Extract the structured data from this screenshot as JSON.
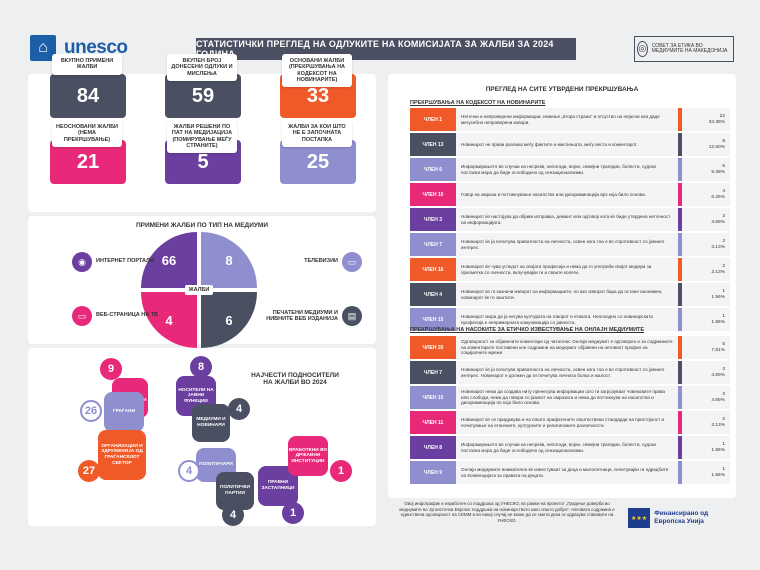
{
  "header": {
    "logo_text": "unesco",
    "title": "СТАТИСТИЧКИ ПРЕГЛЕД НА ОДЛУКИТЕ НА КОМИСИЈАТА ЗА ЖАЛБИ ЗА 2024 ГОДИНА",
    "council_text": "СОВЕТ ЗА ЕТИКА ВО МЕДИУМИТЕ НА МАКЕДОНИЈА"
  },
  "stats": [
    {
      "label": "ВКУПНО ПРИМЕНИ ЖАЛБИ",
      "value": "84",
      "color": "#4a4f62"
    },
    {
      "label": "ВКУПЕН БРОЈ ДОНЕСЕНИ ОДЛУКИ И МИСЛЕЊА",
      "value": "59",
      "color": "#4a4f62"
    },
    {
      "label": "ОСНОВАНИ ЖАЛБИ (ПРЕКРШУВАЊА НА КОДЕКСОТ НА НОВИНАРИТЕ)",
      "value": "33",
      "color": "#f05a28"
    },
    {
      "label": "НЕОСНОВАНИ ЖАЛБИ (НЕМА ПРЕКРШУВАЊЕ)",
      "value": "21",
      "color": "#e8297a"
    },
    {
      "label": "ЖАЛБИ РЕШЕНИ ПО ПАТ НА МЕДИЈАЦИЈА (ПОМИРУВАЊЕ МЕЃУ СТРАНИТЕ)",
      "value": "5",
      "color": "#6b3fa0"
    },
    {
      "label": "ЖАЛБИ ЗА КОИ ШТО НЕ Е ЗАПОЧНАТА ПОСТАПКА",
      "value": "25",
      "color": "#8f8fd0"
    }
  ],
  "media": {
    "title": "ПРИМЕНИ ЖАЛБИ ПО ТИП НА МЕДИУМИ",
    "center": "ЖАЛБИ",
    "items": [
      {
        "label": "ИНТЕРНЕТ ПОРТАЛИ",
        "value": "66",
        "color": "#6b3fa0"
      },
      {
        "label": "ТЕЛЕВИЗИИ",
        "value": "8",
        "color": "#8f8fd0"
      },
      {
        "label": "ВЕБ-СТРАНИЦА НА ТВ",
        "value": "4",
        "color": "#e8297a"
      },
      {
        "label": "ПЕЧАТЕНИ МЕДИУМИ И НИВНИТЕ ВЕБ ИЗДАНИЈА",
        "value": "6",
        "color": "#4a4f62"
      }
    ]
  },
  "submitters": {
    "title": "НАЈЧЕСТИ ПОДНОСИТЕЛИ НА ЖАЛБИ ВО 2024",
    "items": [
      {
        "label": "ЗАВНИ ИНСТИТУЦИИ",
        "value": "9",
        "color": "#e8297a"
      },
      {
        "label": "НОСИТЕЛИ НА ЈАВНИ ФУНКЦИИ",
        "value": "8",
        "color": "#6b3fa0"
      },
      {
        "label": "МЕДИУМИ И НОВИНАРИ",
        "value": "4",
        "color": "#4a4f62"
      },
      {
        "label": "ГРАЃАНИ",
        "value": "26",
        "color": "#8f8fd0"
      },
      {
        "label": "ОРГАНИЗАЦИИ И ЗДРУЖЕНИЈА ОД ГРАЃАНСКИОТ СЕКТОР",
        "value": "27",
        "color": "#f05a28"
      },
      {
        "label": "ПОЛИТИЧАРИ",
        "value": "4",
        "color": "#8f8fd0"
      },
      {
        "label": "ПОЛИТИЧКИ ПАРТИИ",
        "value": "4",
        "color": "#4a4f62"
      },
      {
        "label": "ПРАВНИ ЗАСТАПНИЦИ",
        "value": "1",
        "color": "#6b3fa0"
      },
      {
        "label": "ВРАБОТЕНИ ВО ДРЖАВНИ ИНСТИТУЦИИ",
        "value": "1",
        "color": "#e8297a"
      }
    ]
  },
  "violations": {
    "title": "ПРЕГЛЕД НА СИТЕ УТВРДЕНИ ПРЕКРШУВАЊА",
    "code_title": "ПРЕКРШУВАЊА НА КОДЕКСОТ НА НОВИНАРИТЕ",
    "code_rows": [
      {
        "label": "ЧЛЕН 1",
        "text": "Неточни и непроверени информации, немење „втора страна“ и отсуство на нејасни кои даде мегусебно непроверени извори.",
        "count": "22",
        "pct": "34.38%",
        "color": "#f05a28"
      },
      {
        "label": "ЧЛЕН 13",
        "text": "Новинарот не прави разлика меѓу фактите и мислењата, меѓу веста и коментарот.",
        "count": "8",
        "pct": "12.50%",
        "color": "#4a4f62"
      },
      {
        "label": "ЧЛЕН 6",
        "text": "Информирањето во случаи на несреќи, нелогоди, војни, семејни трагедии, болести, судски постапки мора да биде ослободено од сензационализми.",
        "count": "6",
        "pct": "9.38%",
        "color": "#8f8fd0"
      },
      {
        "label": "ЧЛЕН 10",
        "text": "Говор на омраза и поттикнување насилство или дискриминација врз која било основа.",
        "count": "4",
        "pct": "6.25%",
        "color": "#e8297a"
      },
      {
        "label": "ЧЛЕН 3",
        "text": "Новинарот ќе настојува да објави исправка, демант или одговор кога ќе биде утврдена неточност на информацијата.",
        "count": "3",
        "pct": "4.69%",
        "color": "#6b3fa0"
      },
      {
        "label": "ЧЛЕН 7",
        "text": "Новинарот ќе ја почитува приватноста на личноста, освен кога тоа е во спротивност со јавниот интерес.",
        "count": "2",
        "pct": "3.13%",
        "color": "#8f8fd0"
      },
      {
        "label": "ЧЛЕН 16",
        "text": "Новинарот ќе чува угледот на својата професија и нема да го употреби својот медиум за присметка со личности, вклучувајќи ги и своите колеги.",
        "count": "2",
        "pct": "3.13%",
        "color": "#f05a28"
      },
      {
        "label": "ЧЛЕН 4",
        "text": "Новинарот ќе го казначи изворот на информациите, но ако изворот бара да остане анонимен, новинарот ќе го заштити.",
        "count": "1",
        "pct": "1.56%",
        "color": "#4a4f62"
      },
      {
        "label": "ЧЛЕН 15",
        "text": "Новинарот мора да ја негува културата на говорот и етиката. Неопходно со новинарската професија е непримерната комуникација со јавноста.",
        "count": "1",
        "pct": "1.56%",
        "color": "#8f8fd0"
      }
    ],
    "online_title": "ПРЕКРШУВАЊА НА НАСОКИТЕ ЗА ЕТИЧКО ИЗВЕСТУВАЊЕ НА ОНЛАЈН МЕДИУМИТЕ",
    "online_rows": [
      {
        "label": "ЧЛЕН 20",
        "text": "Одговорност за објавените коментари од читатели. Онлајн медиумот е одговорен и за содржините на коментарите поставени кон содржини на медиумот објавени на неговиот профил на социјалните мрежи",
        "count": "5",
        "pct": "7.81%",
        "color": "#f05a28"
      },
      {
        "label": "ЧЛЕН 7",
        "text": "Новинарот ќе ја почитува приватноста на личноста, освен кога тоа е во спротивност со јавниот интерес. Новинарот е должен да ги почитува личната болка и жалост.",
        "count": "3",
        "pct": "4.69%",
        "color": "#4a4f62"
      },
      {
        "label": "ЧЛЕН 10",
        "text": "Новинарот нема да создава ниту пренесува информации што ги загрозуваат човековите права или слободи, нема да говори со јазикот на омразата и нема да поттикнува на насилство и дискриминација по која било основа.",
        "count": "3",
        "pct": "4.69%",
        "color": "#8f8fd0"
      },
      {
        "label": "ЧЛЕН 11",
        "text": "Новинарот ќе се придржува и на општо прифатените општествени стандарди на пристојност и почитување на етничките, културните и религиозните различности.",
        "count": "2",
        "pct": "3.13%",
        "color": "#e8297a"
      },
      {
        "label": "ЧЛЕН 8",
        "text": "Информирањето во случаи на несреќи, нелогоди, војни, семејни трагедии, болести, судски постапки мора да биде ослободено од сензационализми.",
        "count": "1",
        "pct": "1.56%",
        "color": "#6b3fa0"
      },
      {
        "label": "ЧЛЕН 9",
        "text": "Онлајн медиумите внимателно ќе известуваат за деца и малолетници, почитувајќи ги одредбите на Конвенцијата за правата на децата.",
        "count": "1",
        "pct": "1.56%",
        "color": "#8f8fd0"
      }
    ]
  },
  "footer": {
    "text": "Овој инфографик е изработен со поддршка од УНЕСКО, во рамки на проектот „Градење доверба во медиумите во Југоисточна Европа: поддршка на новинарството како општо добро“. Неговата содржина е единствена одговорност на СЕММ и во никој случај не може да се смета дека ги одразува ставовите на УНЕСКО.",
    "eu_label": "Финансирано од Европска Унија"
  }
}
